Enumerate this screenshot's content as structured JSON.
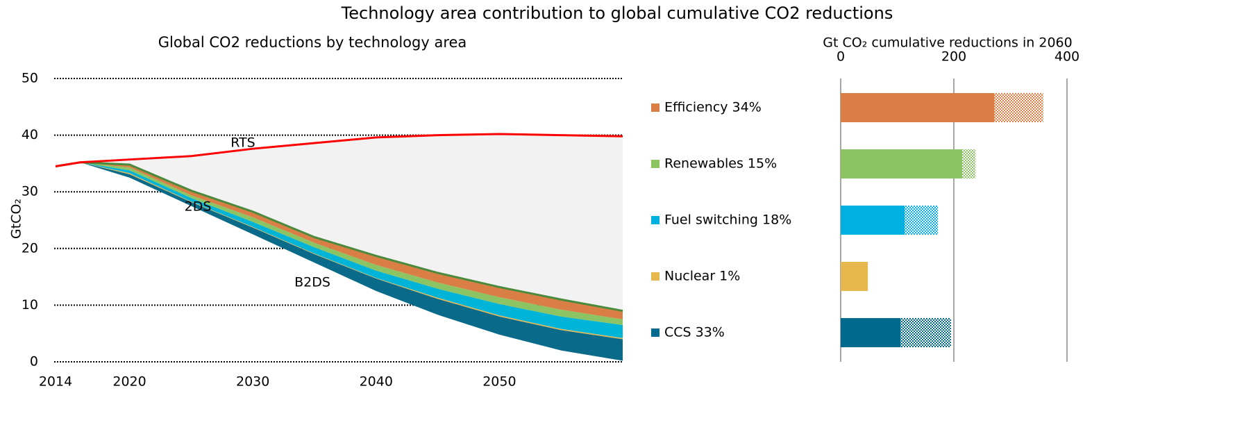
{
  "title": "Technology area contribution to global cumulative CO2 reductions",
  "chart_data": [
    {
      "type": "area",
      "title": "Global CO2 reductions by technology area",
      "ylabel": "GtCO₂",
      "x": [
        2014,
        2016,
        2020,
        2025,
        2030,
        2035,
        2040,
        2045,
        2050,
        2055,
        2060
      ],
      "xlim": [
        2014,
        2060
      ],
      "xticks": [
        2014,
        2020,
        2030,
        2040,
        2050
      ],
      "ylim": [
        0,
        50
      ],
      "yticks": [
        0,
        10,
        20,
        30,
        40,
        50
      ],
      "grid": true,
      "rts": {
        "name": "RTS",
        "color": "#ff0000",
        "values": [
          34.5,
          35.2,
          35.7,
          36.3,
          37.6,
          38.6,
          39.6,
          40.0,
          40.2,
          40.0,
          39.8
        ]
      },
      "b2ds": {
        "name": "B2DS",
        "values": [
          34.5,
          35.2,
          32.5,
          27.5,
          22.5,
          17.5,
          12.5,
          8.3,
          4.8,
          2.0,
          0.2
        ]
      },
      "stack_top": {
        "name": "2DS",
        "color": "#4a8a3c"
      },
      "gap_color": "#f2f2f2",
      "series": [
        {
          "color": "#0a6a8a",
          "values": [
            0,
            0,
            0.6,
            0.7,
            1.2,
            1.5,
            2.2,
            2.8,
            3.2,
            3.6,
            3.8
          ]
        },
        {
          "color": "#e6b84e",
          "values": [
            0,
            0,
            0.2,
            0.1,
            0.1,
            0.1,
            0.1,
            0.2,
            0.2,
            0.2,
            0.2
          ]
        },
        {
          "color": "#00b4d8",
          "values": [
            0,
            0,
            0.5,
            0.6,
            0.9,
            1.1,
            1.3,
            1.6,
            2.0,
            2.2,
            2.3
          ]
        },
        {
          "color": "#8cc464",
          "values": [
            0,
            0,
            0.5,
            0.5,
            0.8,
            0.8,
            1.0,
            1.1,
            1.2,
            1.2,
            1.0
          ]
        },
        {
          "color": "#d97f45",
          "values": [
            0,
            0,
            0.5,
            0.8,
            1.0,
            1.0,
            1.6,
            1.7,
            1.8,
            1.8,
            1.5
          ]
        }
      ]
    },
    {
      "type": "hbar",
      "title": "Gt CO₂ cumulative reductions in 2060",
      "categories": [
        "Efficiency 34%",
        "Renewables 15%",
        "Fuel switching 18%",
        "Nuclear 1%",
        "CCS 33%"
      ],
      "colors": [
        "#d97f45",
        "#8cc464",
        "#00b0e0",
        "#e6b84e",
        "#006a8e"
      ],
      "xlim": [
        0,
        400
      ],
      "xticks": [
        0,
        200,
        400
      ],
      "grid": true,
      "series": [
        {
          "values": [
            272,
            215,
            113,
            48,
            106
          ]
        },
        {
          "hatched": true,
          "values": [
            86,
            23,
            59,
            0,
            89
          ]
        }
      ]
    }
  ]
}
